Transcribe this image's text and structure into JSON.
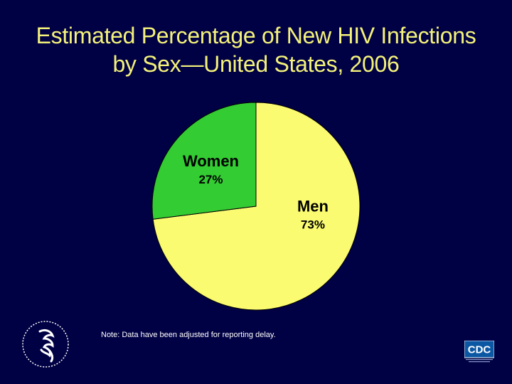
{
  "title": {
    "line1": "Estimated Percentage of New HIV Infections",
    "line2": "by Sex—United States, 2006"
  },
  "note": "Note: Data have been adjusted for reporting delay.",
  "logos": {
    "left": "hhs-seal",
    "right": "cdc-logo",
    "right_text": "CDC"
  },
  "colors": {
    "background": "#000044",
    "title": "#f4f27a",
    "men": "#fbfb72",
    "women": "#33cc33"
  },
  "chart_data": {
    "type": "pie",
    "slices": [
      {
        "label": "Men",
        "value": 73,
        "value_label": "73%",
        "color": "#fbfb72"
      },
      {
        "label": "Women",
        "value": 27,
        "value_label": "27%",
        "color": "#33cc33"
      }
    ]
  }
}
